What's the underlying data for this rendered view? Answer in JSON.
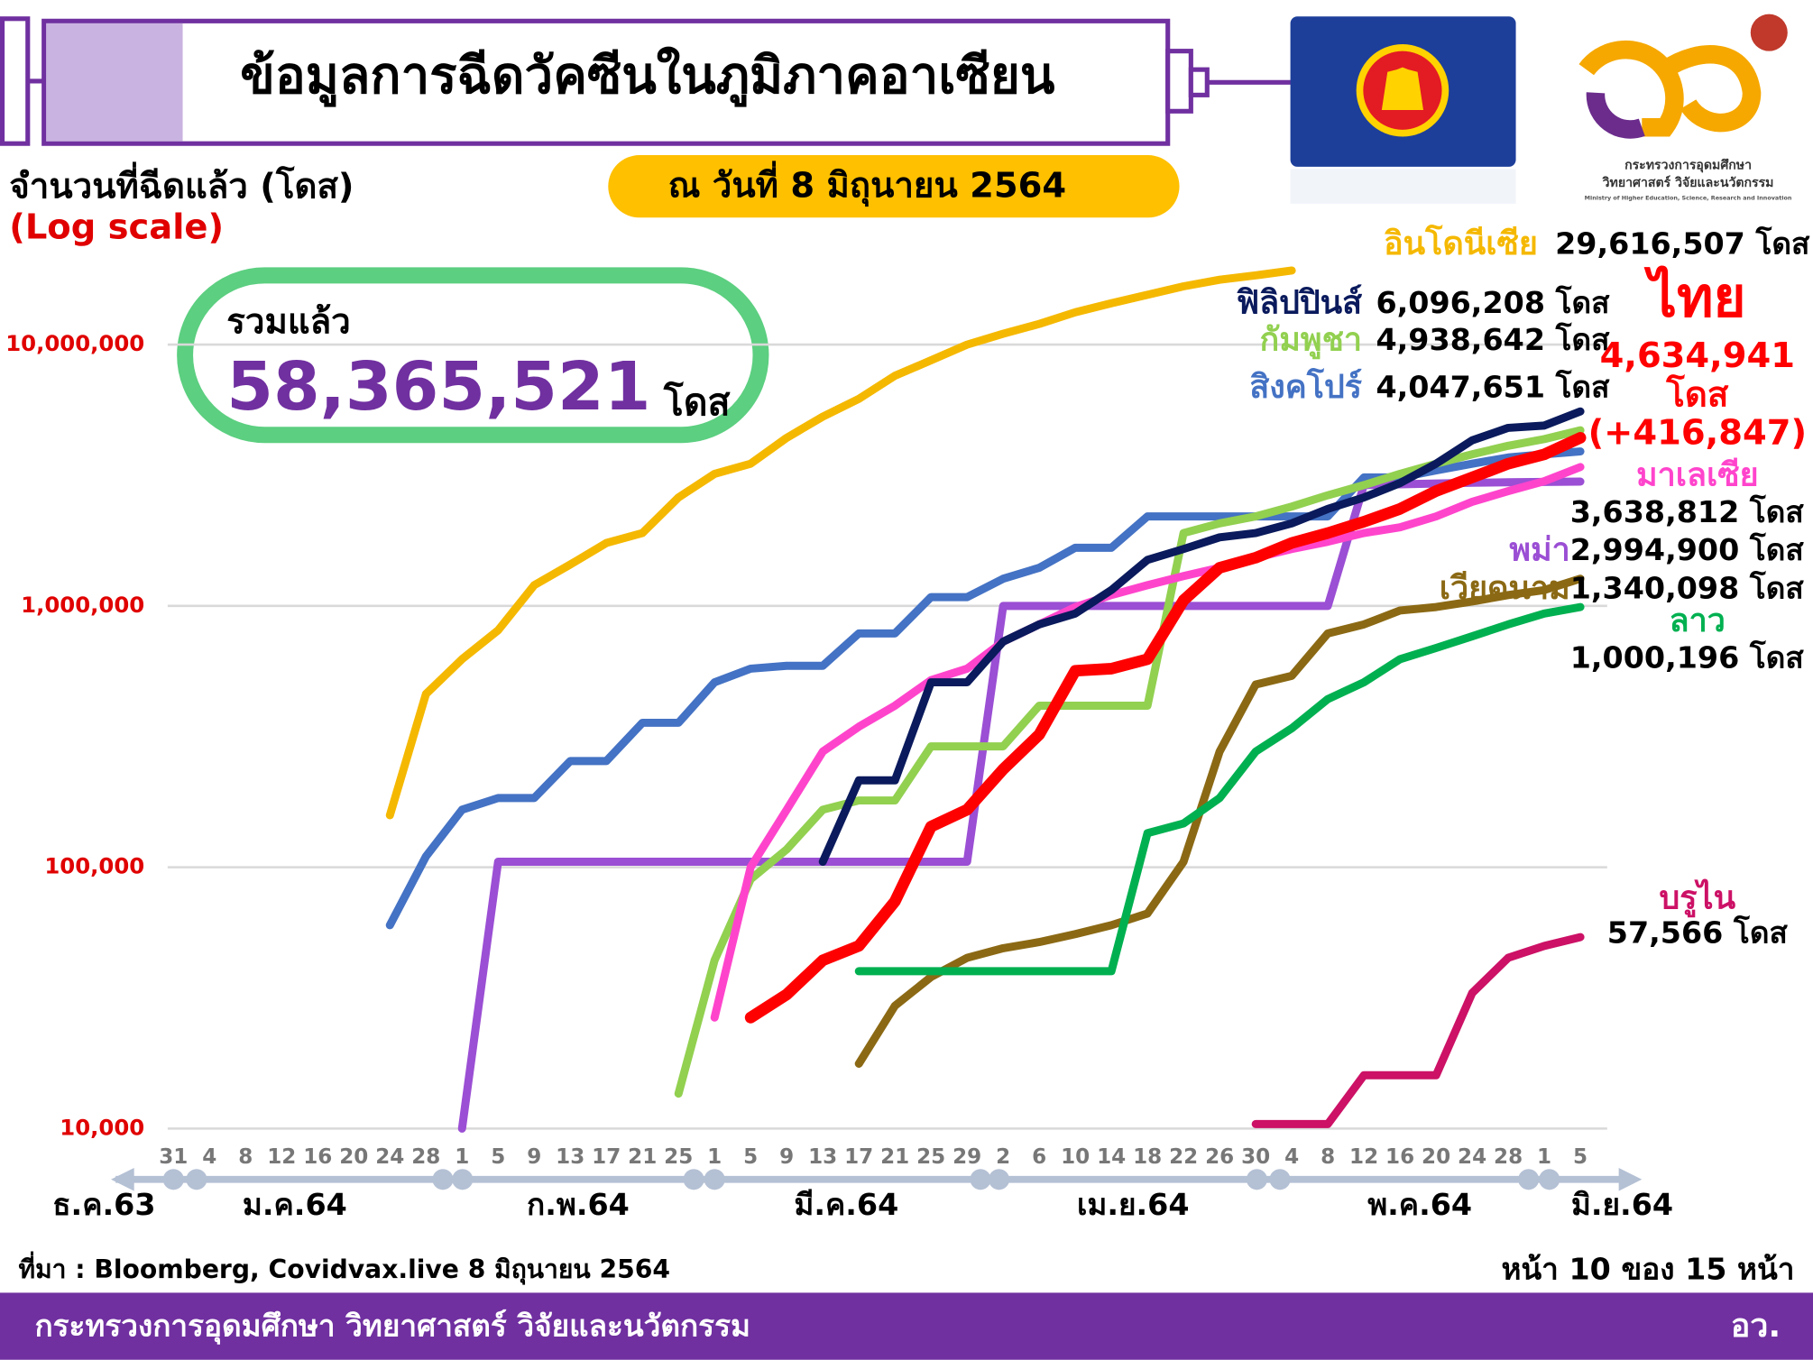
{
  "header": {
    "title": "ข้อมูลการฉีดวัคซีนในภูมิภาคอาเซียน",
    "date": "ณ วันที่ 8 มิถุนายน 2564"
  },
  "logo": {
    "line1": "กระทรวงการอุดมศึกษา",
    "line2": "วิทยาศาสตร์ วิจัยและนวัตกรรม",
    "line3": "Ministry of Higher Education, Science, Research and Innovation"
  },
  "total": {
    "label": "รวมแล้ว",
    "value": "58,365,521",
    "unit": "โดส"
  },
  "chart_data": {
    "type": "line",
    "y_label": "จำนวนที่ฉีดแล้ว (โดส)",
    "y_scale_note": "(Log scale)",
    "log_scale": true,
    "grid": true,
    "categories": [
      "31",
      "4",
      "8",
      "12",
      "16",
      "20",
      "24",
      "28",
      "1",
      "5",
      "9",
      "13",
      "17",
      "21",
      "25",
      "1",
      "5",
      "9",
      "13",
      "17",
      "21",
      "25",
      "29",
      "2",
      "6",
      "10",
      "14",
      "18",
      "22",
      "26",
      "30",
      "4",
      "8",
      "12",
      "16",
      "20",
      "24",
      "28",
      "1",
      "5"
    ],
    "month_labels": [
      "ธ.ค.63",
      "ม.ค.64",
      "ก.พ.64",
      "มี.ค.64",
      "เม.ย.64",
      "พ.ค.64",
      "มิ.ย.64"
    ],
    "ylim": [
      10000,
      30000000
    ],
    "yticks": [
      {
        "value": 10000,
        "label": "10,000"
      },
      {
        "value": 100000,
        "label": "100,000"
      },
      {
        "value": 1000000,
        "label": "1,000,000"
      },
      {
        "value": 10000000,
        "label": "10,000,000"
      }
    ],
    "series": [
      {
        "name": "อินโดนีเซีย",
        "color": "#f5b800",
        "label_lines": [
          "29,616,507 โดส"
        ],
        "values": [
          null,
          null,
          null,
          null,
          null,
          null,
          158000,
          460000,
          625000,
          807000,
          1200000,
          1440000,
          1740000,
          1900000,
          2600000,
          3200000,
          3500000,
          4400000,
          5300000,
          6200000,
          7600000,
          8700000,
          10000000,
          11000000,
          12000000,
          13300000,
          14400000,
          15500000,
          16700000,
          17700000,
          18400000,
          19200000,
          null,
          null,
          null,
          null,
          null,
          null,
          null,
          null
        ]
      },
      {
        "name": "สิงคโปร์",
        "color": "#4472c4",
        "label_lines": [
          "4,047,651 โดส"
        ],
        "values": [
          null,
          null,
          null,
          null,
          null,
          null,
          60000,
          110000,
          166000,
          184000,
          184000,
          255000,
          255000,
          357000,
          357000,
          510000,
          575000,
          590000,
          590000,
          785000,
          785000,
          1080000,
          1080000,
          1270000,
          1400000,
          1670000,
          1670000,
          2200000,
          2200000,
          2200000,
          2200000,
          2200000,
          2200000,
          3100000,
          3100000,
          3300000,
          3500000,
          3700000,
          3800000,
          3900000
        ]
      },
      {
        "name": "พม่า",
        "color": "#9b4fd4",
        "label_lines": [
          "2,994,900 โดส"
        ],
        "values": [
          null,
          null,
          null,
          null,
          null,
          null,
          null,
          null,
          10000,
          105000,
          105000,
          105000,
          105000,
          105000,
          105000,
          105000,
          105000,
          105000,
          105000,
          105000,
          105000,
          105000,
          105000,
          1000000,
          1000000,
          1000000,
          1000000,
          1000000,
          1000000,
          1000000,
          1000000,
          1000000,
          1000000,
          2900000,
          2920000,
          2940000,
          2960000,
          2970000,
          2980000,
          2990000
        ]
      },
      {
        "name": "กัมพูชา",
        "color": "#92d050",
        "label_lines": [
          "4,938,642 โดส"
        ],
        "values": [
          null,
          null,
          null,
          null,
          null,
          null,
          null,
          null,
          null,
          null,
          null,
          null,
          null,
          null,
          13600,
          44000,
          90000,
          117000,
          166000,
          180000,
          180000,
          290000,
          290000,
          290000,
          415000,
          415000,
          415000,
          415000,
          1900000,
          2070000,
          2200000,
          2400000,
          2650000,
          2900000,
          3200000,
          3500000,
          3800000,
          4100000,
          4350000,
          4700000
        ]
      },
      {
        "name": "มาเลเซีย",
        "color": "#ff44cc",
        "label_lines": [
          "3,638,812 โดส"
        ],
        "values": [
          null,
          null,
          null,
          null,
          null,
          null,
          null,
          null,
          null,
          null,
          null,
          null,
          null,
          null,
          null,
          26600,
          100000,
          166000,
          277000,
          345000,
          415000,
          520000,
          575000,
          730000,
          850000,
          990000,
          1100000,
          1200000,
          1300000,
          1400000,
          1530000,
          1650000,
          1760000,
          1900000,
          2000000,
          2200000,
          2500000,
          2750000,
          3000000,
          3400000
        ]
      },
      {
        "name": "เวียดนาม",
        "color": "#8b6914",
        "label_lines": [
          "1,340,098 โดส"
        ],
        "values": [
          null,
          null,
          null,
          null,
          null,
          null,
          null,
          null,
          null,
          null,
          null,
          null,
          null,
          null,
          null,
          null,
          null,
          null,
          null,
          17700,
          29500,
          38000,
          45000,
          49000,
          51700,
          55500,
          60000,
          66500,
          105000,
          277000,
          500000,
          540000,
          785000,
          850000,
          960000,
          990000,
          1040000,
          1100000,
          1150000,
          1270000
        ]
      },
      {
        "name": "ลาว",
        "color": "#00b050",
        "label_lines": [
          "1,000,196 โดส"
        ],
        "values": [
          null,
          null,
          null,
          null,
          null,
          null,
          null,
          null,
          null,
          null,
          null,
          null,
          null,
          null,
          null,
          null,
          null,
          null,
          null,
          40000,
          40000,
          40000,
          40000,
          40000,
          40000,
          40000,
          40000,
          135000,
          147000,
          184000,
          277000,
          340000,
          440000,
          510000,
          625000,
          690000,
          765000,
          850000,
          935000,
          990000
        ]
      },
      {
        "name": "บรูไน",
        "color": "#cc1166",
        "label_lines": [
          "57,566 โดส"
        ],
        "values": [
          null,
          null,
          null,
          null,
          null,
          null,
          null,
          null,
          null,
          null,
          null,
          null,
          null,
          null,
          null,
          null,
          null,
          null,
          null,
          null,
          null,
          null,
          null,
          null,
          null,
          null,
          null,
          null,
          null,
          null,
          10400,
          10400,
          10400,
          16000,
          16000,
          16000,
          33000,
          45000,
          50000,
          54000
        ]
      },
      {
        "name": "ฟิลิปปินส์",
        "color": "#0a1a5c",
        "label_lines": [
          "6,096,208 โดส"
        ],
        "values": [
          null,
          null,
          null,
          null,
          null,
          null,
          null,
          null,
          null,
          null,
          null,
          null,
          null,
          null,
          null,
          null,
          null,
          null,
          105000,
          215000,
          215000,
          510000,
          510000,
          730000,
          850000,
          935000,
          1150000,
          1500000,
          1650000,
          1830000,
          1900000,
          2070000,
          2350000,
          2600000,
          2950000,
          3500000,
          4300000,
          4800000,
          4900000,
          5550000
        ]
      },
      {
        "name": "ไทย",
        "color": "#ff0000",
        "label_lines": [
          "4,634,941",
          "โดส",
          "(+416,847)"
        ],
        "values": [
          null,
          null,
          null,
          null,
          null,
          null,
          null,
          null,
          null,
          null,
          null,
          null,
          null,
          null,
          null,
          null,
          26600,
          32600,
          44000,
          50000,
          74000,
          143000,
          166000,
          237000,
          322000,
          565000,
          575000,
          625000,
          1050000,
          1400000,
          1530000,
          1740000,
          1900000,
          2100000,
          2350000,
          2750000,
          3100000,
          3500000,
          3800000,
          4400000
        ]
      }
    ]
  },
  "footer": {
    "source": "ที่มา : Bloomberg, Covidvax.live 8 มิถุนายน 2564",
    "page": "หน้า 10 ของ 15 หน้า",
    "ministry": "กระทรวงการอุดมศึกษา วิทยาศาสตร์ วิจัยและนวัตกรรม",
    "short": "อว."
  }
}
